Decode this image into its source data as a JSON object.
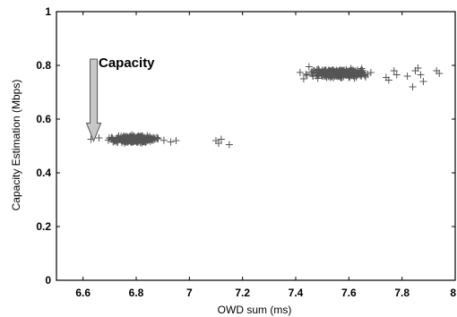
{
  "chart_data": {
    "type": "scatter",
    "title": "",
    "xlabel": "OWD sum (ms)",
    "ylabel": "Capacity Estimation (Mbps)",
    "xlim": [
      6.5,
      8
    ],
    "ylim": [
      0,
      1
    ],
    "x_ticks": [
      6.6,
      6.8,
      7,
      7.2,
      7.4,
      7.6,
      7.8,
      8
    ],
    "x_tick_labels": [
      "6.6",
      "6.8",
      "7",
      "7.2",
      "7.4",
      "7.6",
      "7.8",
      "8"
    ],
    "y_ticks": [
      0,
      0.2,
      0.4,
      0.6,
      0.8,
      1
    ],
    "y_tick_labels": [
      "0",
      "0.2",
      "0.4",
      "0.6",
      "0.8",
      "1"
    ],
    "grid": false,
    "legend": "none",
    "marker": "plus",
    "marker_color": "#555555",
    "annotation": {
      "text": "Capacity",
      "arrow_color": "#b8b8b8",
      "points_to": [
        6.63,
        0.565
      ]
    },
    "clusters": [
      {
        "x_center": 6.79,
        "x_spread": 0.08,
        "y_center": 0.525,
        "y_spread": 0.012,
        "count": 260
      },
      {
        "x_center": 7.56,
        "x_spread": 0.1,
        "y_center": 0.77,
        "y_spread": 0.014,
        "count": 300
      }
    ],
    "outliers": [
      {
        "x": 6.63,
        "y": 0.525
      },
      {
        "x": 6.66,
        "y": 0.53
      },
      {
        "x": 6.93,
        "y": 0.515
      },
      {
        "x": 6.95,
        "y": 0.52
      },
      {
        "x": 7.1,
        "y": 0.52
      },
      {
        "x": 7.12,
        "y": 0.525
      },
      {
        "x": 7.15,
        "y": 0.505
      },
      {
        "x": 7.11,
        "y": 0.51
      },
      {
        "x": 7.74,
        "y": 0.755
      },
      {
        "x": 7.75,
        "y": 0.745
      },
      {
        "x": 7.77,
        "y": 0.78
      },
      {
        "x": 7.78,
        "y": 0.765
      },
      {
        "x": 7.82,
        "y": 0.76
      },
      {
        "x": 7.84,
        "y": 0.72
      },
      {
        "x": 7.85,
        "y": 0.78
      },
      {
        "x": 7.86,
        "y": 0.79
      },
      {
        "x": 7.88,
        "y": 0.74
      },
      {
        "x": 7.87,
        "y": 0.765
      },
      {
        "x": 7.93,
        "y": 0.78
      },
      {
        "x": 7.94,
        "y": 0.77
      },
      {
        "x": 7.43,
        "y": 0.75
      },
      {
        "x": 7.45,
        "y": 0.795
      }
    ]
  }
}
